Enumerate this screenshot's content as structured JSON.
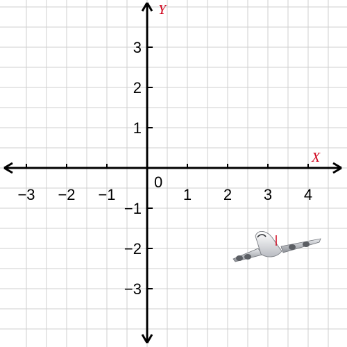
{
  "plane": {
    "x_axis_label": "X",
    "y_axis_label": "Y",
    "origin_label": "0",
    "axis_label_color": "#d0021b",
    "x_range": [
      -3.8,
      4.8
    ],
    "y_range": [
      -4.3,
      4.2
    ],
    "x_ticks": [
      {
        "value": -3,
        "label": "−3"
      },
      {
        "value": -2,
        "label": "−2"
      },
      {
        "value": -1,
        "label": "−1"
      },
      {
        "value": 1,
        "label": "1"
      },
      {
        "value": 2,
        "label": "2"
      },
      {
        "value": 3,
        "label": "3"
      },
      {
        "value": 4,
        "label": "4"
      }
    ],
    "y_ticks": [
      {
        "value": 3,
        "label": "3"
      },
      {
        "value": 2,
        "label": "2"
      },
      {
        "value": 1,
        "label": "1"
      },
      {
        "value": -1,
        "label": "−1"
      },
      {
        "value": -2,
        "label": "−2"
      },
      {
        "value": -3,
        "label": "−3"
      }
    ],
    "grid": true
  },
  "airplane": {
    "icon": "airplane-icon",
    "position": {
      "x": 3.2,
      "y": -2.0
    },
    "marker_color": "#d0021b"
  }
}
